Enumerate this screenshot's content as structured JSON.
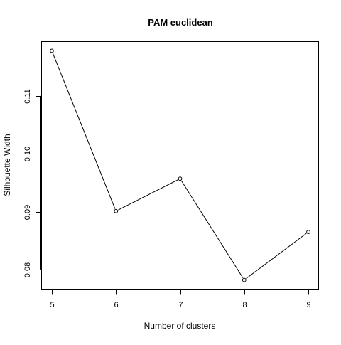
{
  "chart_data": {
    "type": "line",
    "title": "PAM euclidean",
    "xlabel": "Number of clusters",
    "ylabel": "Silhouette Width",
    "x": [
      5,
      6,
      7,
      8,
      9
    ],
    "values": [
      0.1178,
      0.0901,
      0.0957,
      0.0782,
      0.0865
    ],
    "xticks": [
      5,
      6,
      7,
      8,
      9
    ],
    "yticks": [
      0.08,
      0.09,
      0.1,
      0.11
    ],
    "ytick_labels": [
      "0.08",
      "0.09",
      "0.10",
      "0.11"
    ],
    "xlim": [
      4.84,
      9.16
    ],
    "ylim": [
      0.07661,
      0.11939
    ],
    "markers": "open-circle",
    "grid": false,
    "colors": {
      "line": "#000000",
      "axis": "#000000",
      "background": "#ffffff"
    }
  }
}
